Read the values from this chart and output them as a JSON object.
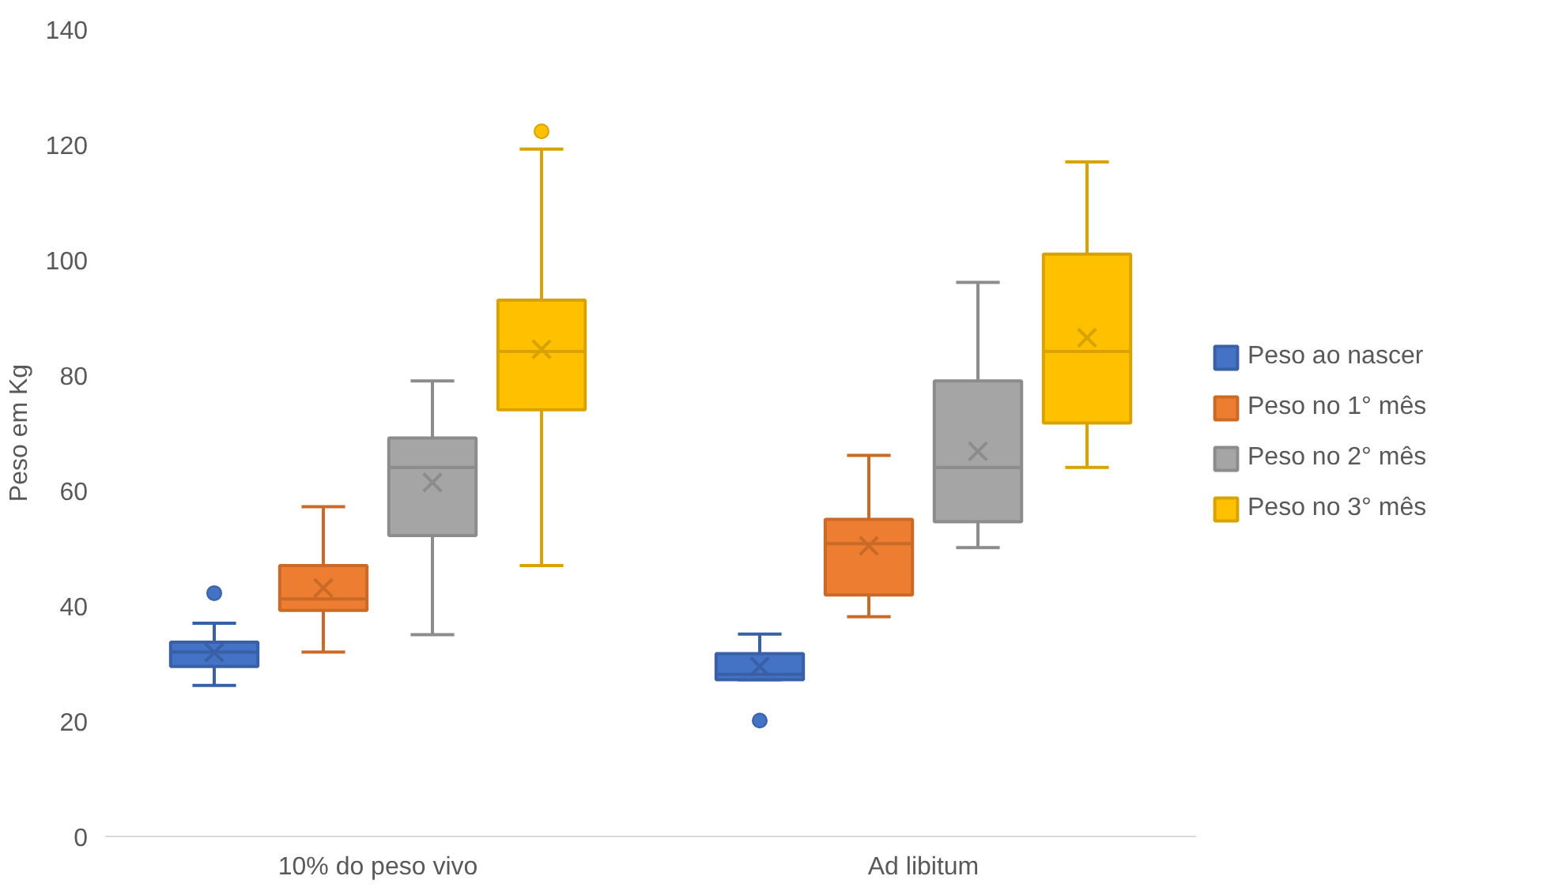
{
  "chart_data": {
    "type": "box",
    "ylabel": "Peso em Kg",
    "categories": [
      "10% do peso vivo",
      "Ad libitum"
    ],
    "ylim": [
      0,
      140
    ],
    "yticks": [
      0,
      20,
      40,
      60,
      80,
      100,
      120,
      140
    ],
    "grid": false,
    "legend": "right",
    "series": [
      {
        "name": "Peso ao nascer",
        "color": "#4472c4",
        "boxes": [
          {
            "low": 26.2,
            "q1": 29.5,
            "median": 32.0,
            "q3": 33.7,
            "high": 37.0,
            "mean": 31.9,
            "outliers": [
              42.2
            ]
          },
          {
            "low": 27.2,
            "q1": 27.2,
            "median": 28.1,
            "q3": 31.7,
            "high": 35.1,
            "mean": 29.5,
            "outliers": [
              20.1
            ]
          }
        ]
      },
      {
        "name": "Peso no 1° mês",
        "color": "#ed7d31",
        "boxes": [
          {
            "low": 32.0,
            "q1": 39.2,
            "median": 41.2,
            "q3": 47.0,
            "high": 57.2,
            "mean": 43.1
          },
          {
            "low": 38.1,
            "q1": 41.9,
            "median": 50.8,
            "q3": 55.0,
            "high": 66.1,
            "mean": 50.4
          }
        ]
      },
      {
        "name": "Peso no 2° mês",
        "color": "#a5a5a5",
        "boxes": [
          {
            "low": 35.0,
            "q1": 52.2,
            "median": 64.0,
            "q3": 69.1,
            "high": 79.0,
            "mean": 61.4
          },
          {
            "low": 50.1,
            "q1": 54.6,
            "median": 64.0,
            "q3": 79.0,
            "high": 96.1,
            "mean": 66.8
          }
        ]
      },
      {
        "name": "Peso no 3° mês",
        "color": "#ffc000",
        "boxes": [
          {
            "low": 47.0,
            "q1": 74.0,
            "median": 84.1,
            "q3": 93.0,
            "high": 119.2,
            "mean": 84.5,
            "outliers": [
              122.3
            ]
          },
          {
            "low": 64.0,
            "q1": 71.7,
            "median": 84.1,
            "q3": 101.0,
            "high": 117.0,
            "mean": 86.5
          }
        ]
      }
    ]
  }
}
